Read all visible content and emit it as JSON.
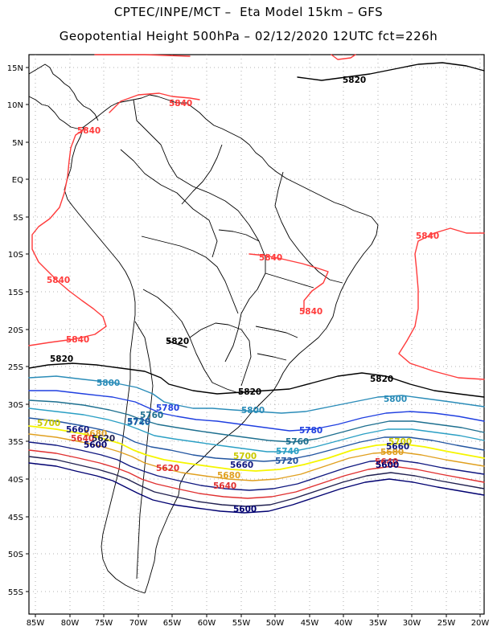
{
  "title_line1": "CPTEC/INPE/MCT –  Eta Model 15km – GFS",
  "title_line2": "Geopotential Height 500hPa – 02/12/2020 12UTC fct=226h",
  "lat_labels": [
    "15N",
    "10N",
    "5N",
    "EQ",
    "5S",
    "10S",
    "15S",
    "20S",
    "25S",
    "30S",
    "35S",
    "40S",
    "45S",
    "50S",
    "55S"
  ],
  "lon_labels": [
    "85W",
    "80W",
    "75W",
    "70W",
    "65W",
    "60W",
    "55W",
    "50W",
    "45W",
    "40W",
    "35W",
    "30W",
    "25W",
    "20W"
  ],
  "contour_labels": {
    "black_5820": "5820",
    "red_5840": "5840",
    "blue_5800": "5800",
    "blue_5780": "5780",
    "blue_5760": "5760",
    "blue_5740": "5740",
    "blue_5720": "5720",
    "yellow_5700": "5700",
    "orange_5680": "5680",
    "navy_5660": "5660",
    "red_5640": "5640",
    "navy_5620": "5620",
    "navy_5600": "5600"
  },
  "colors": {
    "c5840": "#ff3b3b",
    "c5820": "#000000",
    "c5800": "#2a8cb8",
    "c5780": "#1f3fe0",
    "c5760": "#1d6f8f",
    "c5740": "#2a9fc4",
    "c5720": "#2255a0",
    "c5700": "#f5f500",
    "c5680": "#e0a020",
    "c5660": "#101880",
    "c5640": "#e03030",
    "c5620": "#202050",
    "c5600": "#000070",
    "grid": "#9a9a9a",
    "coast": "#000000"
  }
}
